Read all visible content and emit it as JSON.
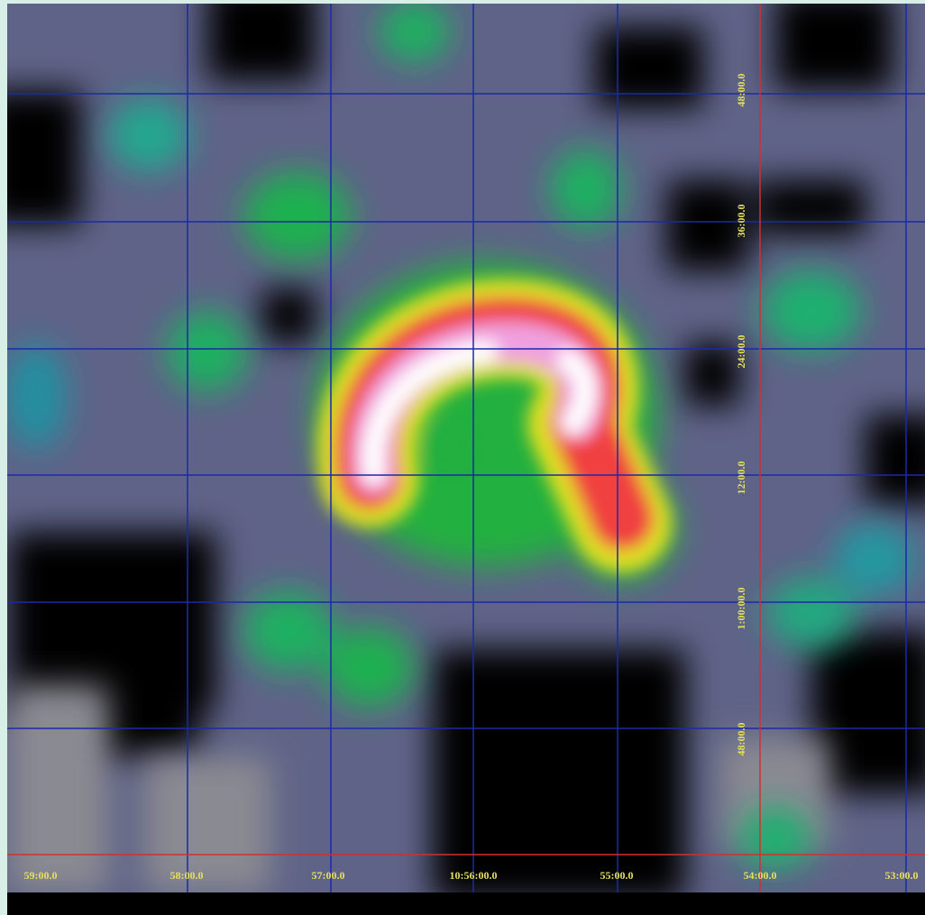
{
  "image": {
    "ra_labels": [
      "59:00.0",
      "58:00.0",
      "57:00.0",
      "10:56:00.0",
      "55:00.0",
      "54:00.0",
      "53:00.0"
    ],
    "dec_labels": [
      "48:00.0",
      "36:00.0",
      "24:00.0",
      "12:00.0",
      "1:00:00.0",
      "48:00.0"
    ]
  }
}
